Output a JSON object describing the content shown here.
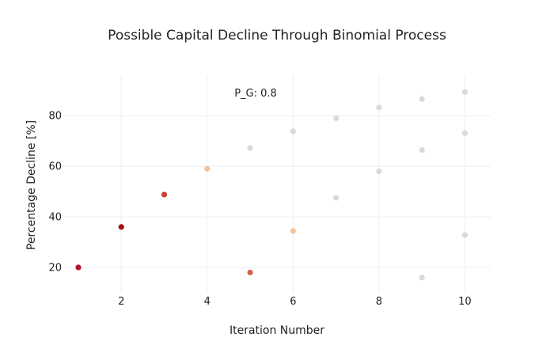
{
  "chart_data": {
    "type": "scatter",
    "title": "Possible Capital Decline Through Binomial Process",
    "xlabel": "Iteration Number",
    "ylabel": "Percentage Decline [%]",
    "annotation": "P_G: 0.8",
    "xlim": [
      0.65,
      10.6
    ],
    "ylim": [
      10,
      96
    ],
    "xticks": [
      2,
      4,
      6,
      8,
      10
    ],
    "yticks": [
      20,
      40,
      60,
      80
    ],
    "grid": true,
    "legend": "none",
    "points": [
      {
        "x": 1,
        "y": 20,
        "color": "#b2182b"
      },
      {
        "x": 2,
        "y": 36,
        "color": "#a50f15"
      },
      {
        "x": 3,
        "y": 48.8,
        "color": "#c9403a"
      },
      {
        "x": 4,
        "y": 59,
        "color": "#f4c29b"
      },
      {
        "x": 5,
        "y": 67.2,
        "color": "#d9d9d9"
      },
      {
        "x": 5,
        "y": 18,
        "color": "#d6604d"
      },
      {
        "x": 6,
        "y": 73.8,
        "color": "#d9d9d9"
      },
      {
        "x": 6,
        "y": 34.4,
        "color": "#f4c29b"
      },
      {
        "x": 7,
        "y": 79,
        "color": "#d9d9d9"
      },
      {
        "x": 7,
        "y": 47.5,
        "color": "#d9d9d9"
      },
      {
        "x": 8,
        "y": 83.2,
        "color": "#d9d9d9"
      },
      {
        "x": 8,
        "y": 58,
        "color": "#d9d9d9"
      },
      {
        "x": 9,
        "y": 86.6,
        "color": "#d9d9d9"
      },
      {
        "x": 9,
        "y": 66.4,
        "color": "#d9d9d9"
      },
      {
        "x": 9,
        "y": 16,
        "color": "#d9d9d9"
      },
      {
        "x": 10,
        "y": 89.3,
        "color": "#d9d9d9"
      },
      {
        "x": 10,
        "y": 73.1,
        "color": "#d9d9d9"
      },
      {
        "x": 10,
        "y": 32.8,
        "color": "#d9d9d9"
      }
    ]
  }
}
